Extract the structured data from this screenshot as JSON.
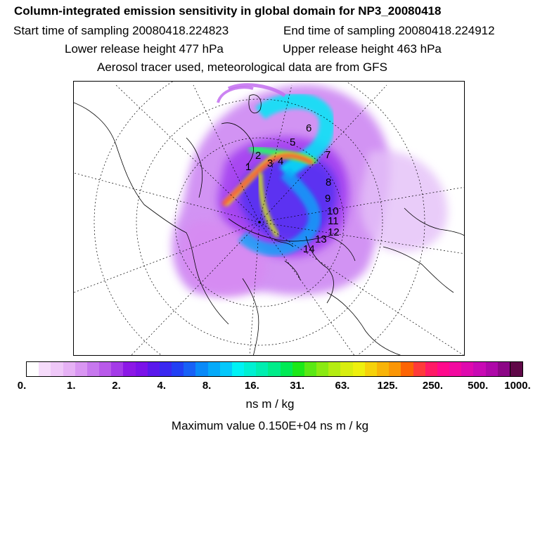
{
  "header": {
    "title": "Column-integrated emission sensitivity in global domain for NP3_20080418",
    "start_time": "Start time of sampling 20080418.224823",
    "end_time": "End time of sampling 20080418.224912",
    "lower_height": "Lower release height  477 hPa",
    "upper_height": "Upper release height  463 hPa",
    "tracer_note": "Aerosol tracer used, meteorological data are from GFS"
  },
  "map": {
    "trajectory_labels": [
      "2",
      "1",
      "3",
      "4",
      "5",
      "6",
      "7",
      "8",
      "9",
      "10",
      "11",
      "12",
      "13",
      "14"
    ]
  },
  "colorbar": {
    "colors": [
      "#ffffff",
      "#f6dcfb",
      "#efc8f8",
      "#e6b1f5",
      "#d996f2",
      "#c778ee",
      "#b95aea",
      "#a43be8",
      "#8c18e6",
      "#7b12e9",
      "#5a18ec",
      "#3a28f0",
      "#2240f4",
      "#1861f6",
      "#0a8af8",
      "#06aaf9",
      "#05c8fb",
      "#00f2f4",
      "#00f0d2",
      "#00eeb0",
      "#00ec8a",
      "#00ea55",
      "#1ce818",
      "#5ae814",
      "#8aea12",
      "#b4ec12",
      "#d8ee10",
      "#eef00e",
      "#f6d20a",
      "#f8b408",
      "#fa9606",
      "#fc6404",
      "#fe3a3a",
      "#ff1a66",
      "#ff0a8c",
      "#f20aa0",
      "#de0aae",
      "#c80ab4",
      "#ae08a8",
      "#8c0686",
      "#600848"
    ],
    "tick_labels": [
      "0.",
      "1.",
      "2.",
      "4.",
      "8.",
      "16.",
      "31.",
      "63.",
      "125.",
      "250.",
      "500.",
      "1000."
    ],
    "unit": "ns m / kg",
    "max_value": "Maximum value  0.150E+04 ns m / kg"
  }
}
